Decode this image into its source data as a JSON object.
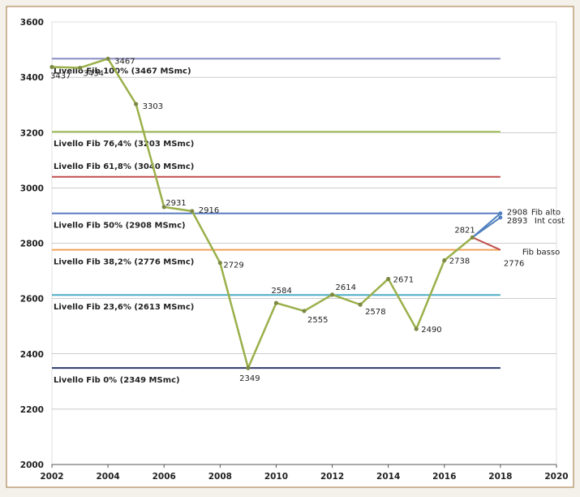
{
  "chart_data": {
    "type": "line",
    "title": "",
    "xlabel": "",
    "ylabel": "",
    "xlim": [
      2002,
      2020
    ],
    "ylim": [
      2000,
      3600
    ],
    "xticks": [
      "2002",
      "2004",
      "2006",
      "2008",
      "2010",
      "2012",
      "2014",
      "2016",
      "2018",
      "2020"
    ],
    "yticks": [
      "2000",
      "2200",
      "2400",
      "2600",
      "2800",
      "3000",
      "3200",
      "3400",
      "3600"
    ],
    "grid": true,
    "colors": {
      "background": "#ffffff",
      "frame": "#b08a5a",
      "grid": "#9a9a9a",
      "series": "#9ab04a",
      "markers": "#7d8a45",
      "fib_alto": "#4f7fbf",
      "fib_basso": "#c0504d"
    },
    "series": [
      {
        "name": "",
        "x": [
          2002,
          2003,
          2004,
          2005,
          2006,
          2007,
          2008,
          2009,
          2010,
          2011,
          2012,
          2013,
          2014,
          2015,
          2016,
          2017
        ],
        "values": [
          3437,
          3434,
          3467,
          3303,
          2931,
          2916,
          2729,
          2349,
          2584,
          2555,
          2614,
          2578,
          2671,
          2490,
          2738,
          2821
        ],
        "labels": [
          "3437",
          "3434",
          "3467",
          "3303",
          "2931",
          "2916",
          "2729",
          "2349",
          "2584",
          "2555",
          "2614",
          "2578",
          "2671",
          "2490",
          "2738",
          "2821"
        ]
      },
      {
        "name": "Fib alto",
        "x": [
          2017,
          2018
        ],
        "values": [
          2821,
          2908
        ],
        "labels": [
          "",
          "2908"
        ]
      },
      {
        "name": "Fib basso",
        "x": [
          2017,
          2018
        ],
        "values": [
          2821,
          2776
        ],
        "labels": [
          "",
          "2776"
        ]
      },
      {
        "name": "Int cost",
        "x": [
          2017,
          2018
        ],
        "values": [
          2821,
          2893
        ],
        "labels": [
          "",
          "2893"
        ]
      }
    ],
    "side_labels": {
      "fib_alto": "Fib  alto",
      "int_cost": "Int cost",
      "fib_basso": "Fib  basso"
    },
    "fib_levels": [
      {
        "label": "Livello Fib  100%  (3467 MSmc)",
        "value": 3467,
        "color": "#8b8fc4"
      },
      {
        "label": "Livello Fib 76,4%  (3203 MSmc)",
        "value": 3203,
        "color": "#9dbb55"
      },
      {
        "label": "Livello Fib  61,8%  (3040 MSmc)",
        "value": 3040,
        "color": "#c0504d"
      },
      {
        "label": "Livello Fib  50%  (2908 MSmc)",
        "value": 2908,
        "color": "#5b7fc0"
      },
      {
        "label": "Livello Fib  38,2%  (2776 MSmc)",
        "value": 2776,
        "color": "#f1a35a"
      },
      {
        "label": "Livello Fib  23,6%  (2613 MSmc)",
        "value": 2613,
        "color": "#4aacc6"
      },
      {
        "label": "Livello Fib 0% (2349  MSmc)",
        "value": 2349,
        "color": "#2f3a6a"
      }
    ]
  }
}
